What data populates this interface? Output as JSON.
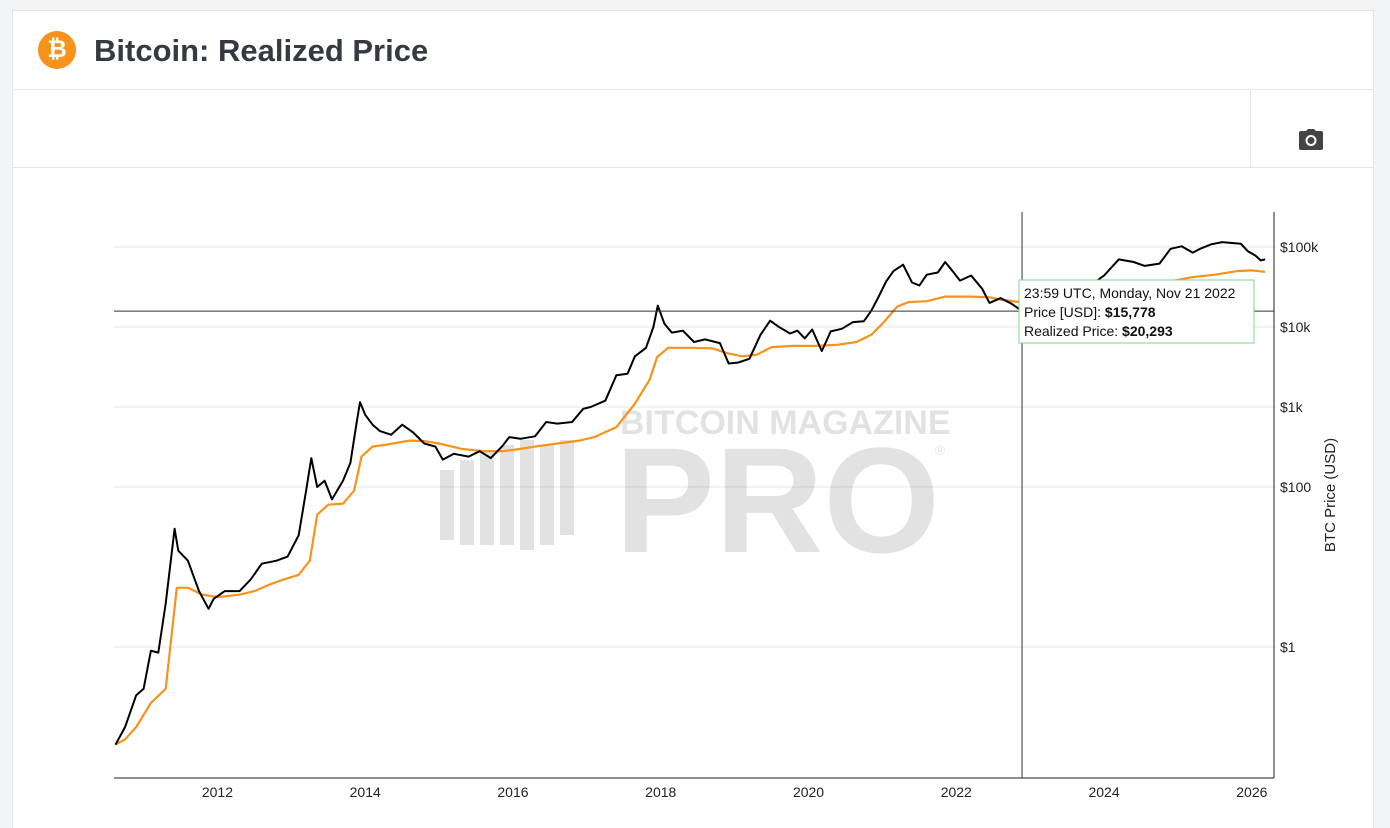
{
  "header": {
    "title": "Bitcoin: Realized Price",
    "logo_symbol": "₿",
    "logo_color": "#f7931a"
  },
  "toolbar": {
    "camera_icon": "camera-icon"
  },
  "watermark": {
    "line1": "BITCOIN MAGAZINE",
    "line2": "PRO",
    "reg": "®"
  },
  "tooltip": {
    "timestamp": "23:59 UTC, Monday, Nov 21 2022",
    "price_label": "Price [USD]: ",
    "price_value": "$15,778",
    "realized_label": "Realized Price: ",
    "realized_value": "$20,293",
    "date_decimal": 2022.89,
    "price_num": 15778,
    "realized_num": 20293
  },
  "chart_data": {
    "type": "line",
    "title": "Bitcoin: Realized Price",
    "xlabel": "",
    "ylabel": "BTC Price (USD)",
    "y_scale": "log",
    "xlim": [
      2010.6,
      2026.3
    ],
    "ylim": [
      0.04,
      200000
    ],
    "x_ticks": [
      {
        "value": 2012,
        "label": "2012"
      },
      {
        "value": 2014,
        "label": "2014"
      },
      {
        "value": 2016,
        "label": "2016"
      },
      {
        "value": 2018,
        "label": "2018"
      },
      {
        "value": 2020,
        "label": "2020"
      },
      {
        "value": 2022,
        "label": "2022"
      },
      {
        "value": 2024,
        "label": "2024"
      },
      {
        "value": 2026,
        "label": "2026"
      }
    ],
    "y_ticks": [
      {
        "value": 1,
        "label": "$1"
      },
      {
        "value": 100,
        "label": "$100"
      },
      {
        "value": 1000,
        "label": "$1k"
      },
      {
        "value": 10000,
        "label": "$10k"
      },
      {
        "value": 100000,
        "label": "$100k"
      }
    ],
    "series": [
      {
        "name": "Price [USD]",
        "color": "#000000",
        "points": [
          [
            2010.62,
            0.06
          ],
          [
            2010.75,
            0.1
          ],
          [
            2010.9,
            0.25
          ],
          [
            2011.0,
            0.3
          ],
          [
            2011.1,
            0.9
          ],
          [
            2011.2,
            0.85
          ],
          [
            2011.3,
            3.5
          ],
          [
            2011.42,
            30
          ],
          [
            2011.47,
            16
          ],
          [
            2011.6,
            12
          ],
          [
            2011.75,
            5
          ],
          [
            2011.88,
            3
          ],
          [
            2011.95,
            4
          ],
          [
            2012.1,
            5
          ],
          [
            2012.3,
            5
          ],
          [
            2012.45,
            7
          ],
          [
            2012.6,
            11
          ],
          [
            2012.8,
            12
          ],
          [
            2012.95,
            13.5
          ],
          [
            2013.1,
            25
          ],
          [
            2013.2,
            90
          ],
          [
            2013.27,
            230
          ],
          [
            2013.35,
            100
          ],
          [
            2013.45,
            120
          ],
          [
            2013.55,
            70
          ],
          [
            2013.7,
            120
          ],
          [
            2013.8,
            200
          ],
          [
            2013.88,
            600
          ],
          [
            2013.93,
            1150
          ],
          [
            2014.0,
            800
          ],
          [
            2014.1,
            600
          ],
          [
            2014.2,
            500
          ],
          [
            2014.35,
            450
          ],
          [
            2014.5,
            600
          ],
          [
            2014.65,
            480
          ],
          [
            2014.8,
            350
          ],
          [
            2014.95,
            320
          ],
          [
            2015.05,
            220
          ],
          [
            2015.2,
            260
          ],
          [
            2015.4,
            240
          ],
          [
            2015.55,
            280
          ],
          [
            2015.7,
            230
          ],
          [
            2015.85,
            320
          ],
          [
            2015.95,
            420
          ],
          [
            2016.1,
            400
          ],
          [
            2016.3,
            430
          ],
          [
            2016.45,
            650
          ],
          [
            2016.6,
            620
          ],
          [
            2016.8,
            650
          ],
          [
            2016.95,
            950
          ],
          [
            2017.05,
            1000
          ],
          [
            2017.25,
            1200
          ],
          [
            2017.4,
            2500
          ],
          [
            2017.55,
            2600
          ],
          [
            2017.65,
            4300
          ],
          [
            2017.8,
            5500
          ],
          [
            2017.9,
            10000
          ],
          [
            2017.96,
            18500
          ],
          [
            2018.05,
            11000
          ],
          [
            2018.15,
            8500
          ],
          [
            2018.3,
            9000
          ],
          [
            2018.45,
            6500
          ],
          [
            2018.6,
            7000
          ],
          [
            2018.8,
            6300
          ],
          [
            2018.92,
            3500
          ],
          [
            2019.05,
            3600
          ],
          [
            2019.2,
            4000
          ],
          [
            2019.35,
            8000
          ],
          [
            2019.48,
            12000
          ],
          [
            2019.6,
            10000
          ],
          [
            2019.75,
            8300
          ],
          [
            2019.85,
            9000
          ],
          [
            2019.95,
            7200
          ],
          [
            2020.05,
            9300
          ],
          [
            2020.18,
            5000
          ],
          [
            2020.3,
            8800
          ],
          [
            2020.45,
            9500
          ],
          [
            2020.6,
            11500
          ],
          [
            2020.75,
            11800
          ],
          [
            2020.85,
            16000
          ],
          [
            2020.95,
            24000
          ],
          [
            2021.05,
            37000
          ],
          [
            2021.15,
            50000
          ],
          [
            2021.28,
            60000
          ],
          [
            2021.4,
            36000
          ],
          [
            2021.5,
            33000
          ],
          [
            2021.6,
            45000
          ],
          [
            2021.75,
            48000
          ],
          [
            2021.85,
            65000
          ],
          [
            2021.95,
            50000
          ],
          [
            2022.05,
            38000
          ],
          [
            2022.2,
            44000
          ],
          [
            2022.35,
            30000
          ],
          [
            2022.45,
            20000
          ],
          [
            2022.6,
            23000
          ],
          [
            2022.75,
            19500
          ],
          [
            2022.89,
            15778
          ],
          [
            2023.0,
            16500
          ],
          [
            2023.1,
            23000
          ],
          [
            2023.25,
            28000
          ],
          [
            2023.5,
            29500
          ],
          [
            2023.7,
            26500
          ],
          [
            2023.85,
            35000
          ],
          [
            2024.0,
            44000
          ],
          [
            2024.2,
            70000
          ],
          [
            2024.4,
            65000
          ],
          [
            2024.55,
            58000
          ],
          [
            2024.75,
            62000
          ],
          [
            2024.9,
            95000
          ],
          [
            2025.05,
            102000
          ],
          [
            2025.2,
            85000
          ],
          [
            2025.3,
            95000
          ],
          [
            2025.45,
            108000
          ],
          [
            2025.6,
            115000
          ],
          [
            2025.75,
            112000
          ],
          [
            2025.85,
            110000
          ],
          [
            2025.95,
            88000
          ],
          [
            2026.05,
            78000
          ],
          [
            2026.12,
            68000
          ],
          [
            2026.18,
            70000
          ]
        ]
      },
      {
        "name": "Realized Price",
        "color": "#f7931a",
        "points": [
          [
            2010.62,
            0.06
          ],
          [
            2010.75,
            0.07
          ],
          [
            2010.9,
            0.1
          ],
          [
            2011.1,
            0.2
          ],
          [
            2011.3,
            0.3
          ],
          [
            2011.45,
            5.5
          ],
          [
            2011.6,
            5.5
          ],
          [
            2011.8,
            4.5
          ],
          [
            2012.0,
            4.2
          ],
          [
            2012.3,
            4.5
          ],
          [
            2012.5,
            5.0
          ],
          [
            2012.7,
            6.0
          ],
          [
            2012.9,
            7.0
          ],
          [
            2013.1,
            8.0
          ],
          [
            2013.25,
            12
          ],
          [
            2013.35,
            45
          ],
          [
            2013.5,
            60
          ],
          [
            2013.7,
            62
          ],
          [
            2013.85,
            90
          ],
          [
            2013.95,
            240
          ],
          [
            2014.1,
            320
          ],
          [
            2014.3,
            340
          ],
          [
            2014.6,
            380
          ],
          [
            2014.8,
            375
          ],
          [
            2015.0,
            350
          ],
          [
            2015.3,
            300
          ],
          [
            2015.6,
            280
          ],
          [
            2015.85,
            280
          ],
          [
            2016.0,
            290
          ],
          [
            2016.3,
            320
          ],
          [
            2016.6,
            350
          ],
          [
            2016.9,
            380
          ],
          [
            2017.1,
            420
          ],
          [
            2017.4,
            560
          ],
          [
            2017.65,
            1100
          ],
          [
            2017.85,
            2200
          ],
          [
            2017.95,
            4200
          ],
          [
            2018.1,
            5500
          ],
          [
            2018.4,
            5500
          ],
          [
            2018.7,
            5400
          ],
          [
            2018.9,
            4700
          ],
          [
            2019.1,
            4300
          ],
          [
            2019.3,
            4500
          ],
          [
            2019.5,
            5600
          ],
          [
            2019.8,
            5800
          ],
          [
            2020.1,
            5800
          ],
          [
            2020.4,
            6000
          ],
          [
            2020.65,
            6500
          ],
          [
            2020.85,
            8000
          ],
          [
            2021.0,
            11000
          ],
          [
            2021.2,
            18000
          ],
          [
            2021.35,
            20500
          ],
          [
            2021.6,
            21000
          ],
          [
            2021.85,
            24000
          ],
          [
            2022.2,
            24000
          ],
          [
            2022.45,
            23500
          ],
          [
            2022.6,
            22000
          ],
          [
            2022.89,
            20293
          ],
          [
            2023.1,
            19800
          ],
          [
            2023.4,
            20000
          ],
          [
            2023.7,
            20200
          ],
          [
            2023.95,
            22000
          ],
          [
            2024.2,
            27000
          ],
          [
            2024.5,
            30000
          ],
          [
            2024.75,
            33000
          ],
          [
            2024.95,
            38000
          ],
          [
            2025.2,
            42000
          ],
          [
            2025.5,
            45000
          ],
          [
            2025.8,
            50000
          ],
          [
            2026.0,
            51000
          ],
          [
            2026.18,
            49000
          ]
        ]
      }
    ]
  }
}
